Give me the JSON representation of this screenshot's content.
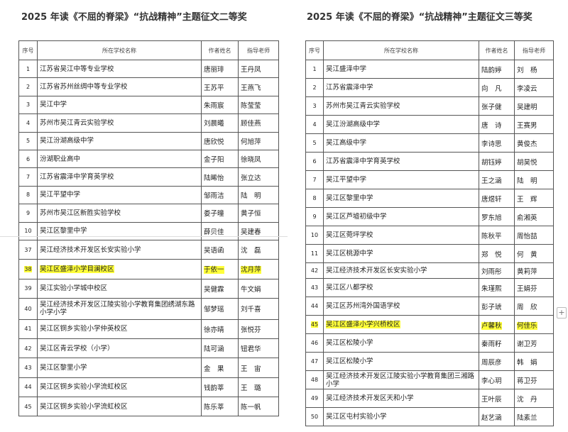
{
  "highlight_color": "#ffff3a",
  "left": {
    "title": "2025 年读《不屈的脊梁》“抗战精神”主题征文二等奖",
    "headers": [
      "序号",
      "所在学校名称",
      "作者姓名",
      "指导老师"
    ],
    "rows": [
      [
        "1",
        "江苏省吴江中等专业学校",
        "唐丽琲",
        "王丹凤"
      ],
      [
        "2",
        "江苏省苏州丝绸中等专业学校",
        "王苏平",
        "王燕飞"
      ],
      [
        "3",
        "吴江中学",
        "朱雨宸",
        "陈莹莹"
      ],
      [
        "4",
        "苏州市吴江青云实验学校",
        "刘晨曦",
        "顾佳燕"
      ],
      [
        "5",
        "吴江汾湖高级中学",
        "唐欣悦",
        "何旭萍"
      ],
      [
        "6",
        "汾湖职业高中",
        "金子阳",
        "徐晓凤"
      ],
      [
        "7",
        "江苏省震泽中学育英学校",
        "陆晞怡",
        "张立达"
      ],
      [
        "8",
        "吴江平望中学",
        "邹雨洁",
        "陆　明"
      ],
      [
        "9",
        "苏州市吴江区新胜实验学校",
        "娄子曈",
        "黄子恒"
      ],
      [
        "10",
        "吴江区黎里中学",
        "薛贝佳",
        "吴建春"
      ],
      [
        "37",
        "吴江经济技术开发区长安实验小学",
        "吴语函",
        "沈　磊"
      ],
      [
        "38",
        "吴江区盛泽小学目澜校区",
        "于依一",
        "沈月萍"
      ],
      [
        "39",
        "吴江实验小学城中校区",
        "吴健霖",
        "牛文娟"
      ],
      [
        "40",
        "吴江经济技术开发区江陵实验小学教育集团绣湖东路小学小学",
        "邹梦瑶",
        "刘千喜"
      ],
      [
        "41",
        "吴江区铜乡实验小学仲英校区",
        "徐亦晴",
        "张悦芬"
      ],
      [
        "42",
        "吴江区青云学校（小学）",
        "陆可涵",
        "钮君华"
      ],
      [
        "43",
        "吴江区黎里小学",
        "金　果",
        "王　宙"
      ],
      [
        "44",
        "吴江区铜乡实验小学流虹校区",
        "钱韵莘",
        "王　璐"
      ],
      [
        "45",
        "吴江区铜乡实验小学流虹校区",
        "陈乐莘",
        "陈一帆"
      ]
    ],
    "highlighted_row": "38"
  },
  "right": {
    "title": "2025 年读《不屈的脊梁》“抗战精神”主题征文三等奖",
    "headers": [
      "序号",
      "所在学校名称",
      "作者姓名",
      "指导老师"
    ],
    "rows": [
      [
        "1",
        "吴江盛泽中学",
        "陆韵婷",
        "刘　杨"
      ],
      [
        "2",
        "江苏省震泽中学",
        "向　凡",
        "李凌云"
      ],
      [
        "3",
        "苏州市吴江青云实验学校",
        "张子健",
        "吴建明"
      ],
      [
        "4",
        "吴江汾湖高级中学",
        "唐　诗",
        "王赛男"
      ],
      [
        "5",
        "吴江高级中学",
        "李诗思",
        "黄俊杰"
      ],
      [
        "6",
        "江苏省震泽中学育英学校",
        "胡钰婷",
        "胡昊悦"
      ],
      [
        "7",
        "吴江平望中学",
        "王之涵",
        "陆　明"
      ],
      [
        "8",
        "吴江区黎里中学",
        "唐煜轩",
        "王　辉"
      ],
      [
        "9",
        "吴江区芦墟初级中学",
        "罗东旭",
        "俞湘英"
      ],
      [
        "10",
        "吴江区菀坪学校",
        "陈秋平",
        "周怡喆"
      ],
      [
        "11",
        "吴江区桃源中学",
        "郑　悦",
        "何　黄"
      ],
      [
        "42",
        "吴江经济技术开发区长安实验小学",
        "刘雨彤",
        "黄莉萍"
      ],
      [
        "43",
        "吴江区八都学校",
        "朱瑾熙",
        "王娟芬"
      ],
      [
        "44",
        "吴江区苏州湾外国语学校",
        "彭子琥",
        "周　欣"
      ],
      [
        "45",
        "吴江区盛泽小学兴桥校区",
        "卢馨秋",
        "何佳乐"
      ],
      [
        "46",
        "吴江区松陵小学",
        "秦雨籽",
        "谢卫芳"
      ],
      [
        "47",
        "吴江区松陵小学",
        "周辰彦",
        "韩　娟"
      ],
      [
        "48",
        "吴江经济技术开发区江陵实验小学教育集团三湘路小学",
        "李心玥",
        "蒋卫芬"
      ],
      [
        "49",
        "吴江经济技术开发区天和小学",
        "王叶辰",
        "沈　丹"
      ],
      [
        "50",
        "吴江区屯村实验小学",
        "赵艺涵",
        "陆素兰"
      ]
    ],
    "highlighted_row": "45"
  },
  "add_button_label": "+"
}
